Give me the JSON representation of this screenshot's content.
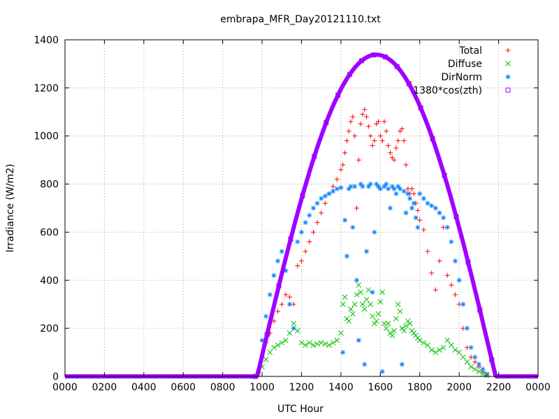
{
  "chart_data": {
    "type": "scatter",
    "title": "embrapa_MFR_Day20121110.txt",
    "xlabel": "UTC Hour",
    "ylabel": "Irradiance (W/m2)",
    "xlim": [
      0,
      24
    ],
    "ylim": [
      0,
      1400
    ],
    "x_ticks": [
      0,
      2,
      4,
      6,
      8,
      10,
      12,
      14,
      16,
      18,
      20,
      22,
      24
    ],
    "x_tick_labels": [
      "0000",
      "0200",
      "0400",
      "0600",
      "0800",
      "1000",
      "1200",
      "1400",
      "1600",
      "1800",
      "2000",
      "2200",
      "0000"
    ],
    "y_ticks": [
      0,
      200,
      400,
      600,
      800,
      1000,
      1200,
      1400
    ],
    "y_tick_labels": [
      "0",
      "200",
      "400",
      "600",
      "800",
      "1000",
      "1200",
      "1400"
    ],
    "grid": true,
    "legend_position": "top-right",
    "series": [
      {
        "name": "Total",
        "marker": "plus",
        "color": "#ff0000",
        "x": [
          9.8,
          10.0,
          10.2,
          10.4,
          10.6,
          10.8,
          11.0,
          11.2,
          11.4,
          11.6,
          11.8,
          12.0,
          12.2,
          12.4,
          12.6,
          12.8,
          13.0,
          13.2,
          13.4,
          13.6,
          13.8,
          14.0,
          14.1,
          14.2,
          14.3,
          14.4,
          14.5,
          14.6,
          14.7,
          14.8,
          14.9,
          15.0,
          15.1,
          15.2,
          15.3,
          15.4,
          15.5,
          15.6,
          15.7,
          15.8,
          15.9,
          16.0,
          16.1,
          16.2,
          16.3,
          16.4,
          16.5,
          16.6,
          16.7,
          16.8,
          16.9,
          17.0,
          17.1,
          17.2,
          17.3,
          17.4,
          17.5,
          17.6,
          17.7,
          17.8,
          17.9,
          18.0,
          18.2,
          18.4,
          18.6,
          18.8,
          19.0,
          19.2,
          19.4,
          19.6,
          19.8,
          20.0,
          20.2,
          20.4,
          20.6,
          20.8,
          21.0,
          21.2,
          21.4
        ],
        "y": [
          15,
          80,
          140,
          180,
          230,
          270,
          300,
          340,
          330,
          300,
          460,
          480,
          520,
          560,
          600,
          640,
          680,
          720,
          760,
          790,
          820,
          860,
          880,
          930,
          980,
          1020,
          1060,
          1080,
          1000,
          700,
          900,
          1050,
          1090,
          1110,
          1080,
          1040,
          1000,
          960,
          980,
          1050,
          1060,
          1000,
          980,
          1060,
          1020,
          960,
          930,
          910,
          900,
          950,
          980,
          1020,
          1030,
          980,
          880,
          780,
          760,
          780,
          760,
          720,
          690,
          650,
          610,
          520,
          430,
          360,
          480,
          620,
          420,
          380,
          340,
          300,
          200,
          120,
          80,
          60,
          40,
          20,
          5
        ]
      },
      {
        "name": "Diffuse",
        "marker": "x",
        "color": "#00c000",
        "x": [
          9.8,
          10.0,
          10.2,
          10.4,
          10.6,
          10.8,
          11.0,
          11.2,
          11.4,
          11.6,
          11.8,
          12.0,
          12.2,
          12.4,
          12.6,
          12.8,
          13.0,
          13.2,
          13.4,
          13.6,
          13.8,
          14.0,
          14.1,
          14.2,
          14.3,
          14.4,
          14.5,
          14.6,
          14.7,
          14.8,
          14.9,
          15.0,
          15.1,
          15.2,
          15.3,
          15.4,
          15.5,
          15.6,
          15.7,
          15.8,
          15.9,
          16.0,
          16.1,
          16.2,
          16.3,
          16.4,
          16.5,
          16.6,
          16.7,
          16.8,
          16.9,
          17.0,
          17.1,
          17.2,
          17.3,
          17.4,
          17.5,
          17.6,
          17.7,
          17.8,
          17.9,
          18.0,
          18.2,
          18.4,
          18.6,
          18.8,
          19.0,
          19.2,
          19.4,
          19.6,
          19.8,
          20.0,
          20.2,
          20.4,
          20.6,
          20.8,
          21.0,
          21.2,
          21.4
        ],
        "y": [
          10,
          40,
          70,
          100,
          120,
          130,
          140,
          150,
          180,
          220,
          190,
          140,
          130,
          140,
          130,
          135,
          140,
          135,
          130,
          140,
          150,
          180,
          300,
          330,
          240,
          230,
          280,
          260,
          300,
          340,
          380,
          350,
          300,
          280,
          320,
          360,
          300,
          250,
          220,
          230,
          260,
          310,
          350,
          220,
          200,
          220,
          180,
          170,
          190,
          240,
          300,
          270,
          200,
          190,
          210,
          230,
          220,
          190,
          180,
          170,
          160,
          150,
          140,
          130,
          110,
          100,
          110,
          120,
          150,
          130,
          110,
          100,
          80,
          60,
          40,
          30,
          20,
          10,
          5
        ]
      },
      {
        "name": "DirNorm",
        "marker": "asterisk",
        "color": "#0080ff",
        "x": [
          9.8,
          10.0,
          10.2,
          10.4,
          10.6,
          10.8,
          11.0,
          11.2,
          11.4,
          11.6,
          11.8,
          12.0,
          12.2,
          12.4,
          12.6,
          12.8,
          13.0,
          13.2,
          13.4,
          13.6,
          13.8,
          14.0,
          14.1,
          14.2,
          14.3,
          14.4,
          14.5,
          14.6,
          14.7,
          14.8,
          14.9,
          15.0,
          15.1,
          15.2,
          15.3,
          15.4,
          15.5,
          15.6,
          15.7,
          15.8,
          15.9,
          16.0,
          16.1,
          16.2,
          16.3,
          16.4,
          16.5,
          16.6,
          16.7,
          16.8,
          16.9,
          17.0,
          17.1,
          17.2,
          17.3,
          17.4,
          17.5,
          17.6,
          17.7,
          17.8,
          17.9,
          18.0,
          18.2,
          18.4,
          18.6,
          18.8,
          19.0,
          19.2,
          19.4,
          19.6,
          19.8,
          20.0,
          20.2,
          20.4,
          20.6,
          20.8,
          21.0,
          21.2,
          21.4
        ],
        "y": [
          20,
          150,
          250,
          340,
          420,
          480,
          520,
          440,
          300,
          200,
          560,
          600,
          640,
          670,
          700,
          720,
          740,
          750,
          760,
          770,
          780,
          785,
          100,
          650,
          500,
          780,
          790,
          620,
          790,
          400,
          150,
          800,
          790,
          50,
          520,
          790,
          800,
          350,
          600,
          800,
          790,
          780,
          20,
          790,
          800,
          780,
          700,
          790,
          780,
          760,
          790,
          780,
          50,
          770,
          680,
          760,
          740,
          700,
          720,
          660,
          620,
          760,
          740,
          720,
          710,
          700,
          680,
          660,
          620,
          560,
          480,
          400,
          300,
          200,
          120,
          80,
          50,
          30,
          10
        ]
      },
      {
        "name": "1380*cos(zth)",
        "marker": "square",
        "color": "#a000ff",
        "curve": {
          "function": "1338*cos(pi*(h-15.8)/(2*6.05))",
          "peak_hour": 15.8,
          "peak_value": 1338,
          "sunrise_hour": 9.75,
          "sunset_hour": 21.85
        }
      }
    ]
  }
}
